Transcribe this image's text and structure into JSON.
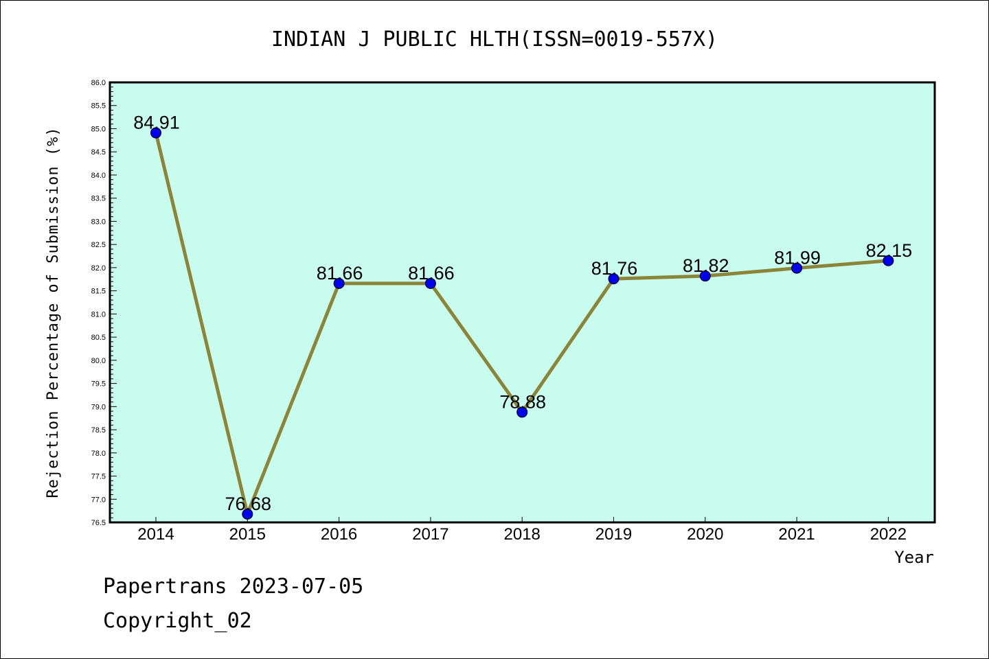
{
  "chart_data": {
    "type": "line",
    "title": "INDIAN J PUBLIC HLTH(ISSN=0019-557X)",
    "xlabel": "Year",
    "ylabel": "Rejection Percentage of Submission (%)",
    "categories": [
      "2014",
      "2015",
      "2016",
      "2017",
      "2018",
      "2019",
      "2020",
      "2021",
      "2022"
    ],
    "values": [
      84.91,
      76.68,
      81.66,
      81.66,
      78.88,
      81.76,
      81.82,
      81.99,
      82.15
    ],
    "data_labels": [
      "84.91",
      "76.68",
      "81.66",
      "81.66",
      "78.88",
      "81.76",
      "81.82",
      "81.99",
      "82.15"
    ],
    "ylim": [
      76.5,
      86.0
    ],
    "ytick_step": 0.5,
    "grid": false,
    "colors": {
      "plot_background": "#c8fcee",
      "line": "#8b8439",
      "marker": "#0000ee"
    }
  },
  "footer": {
    "line1": "Papertrans 2023-07-05",
    "line2": "Copyright_02"
  }
}
